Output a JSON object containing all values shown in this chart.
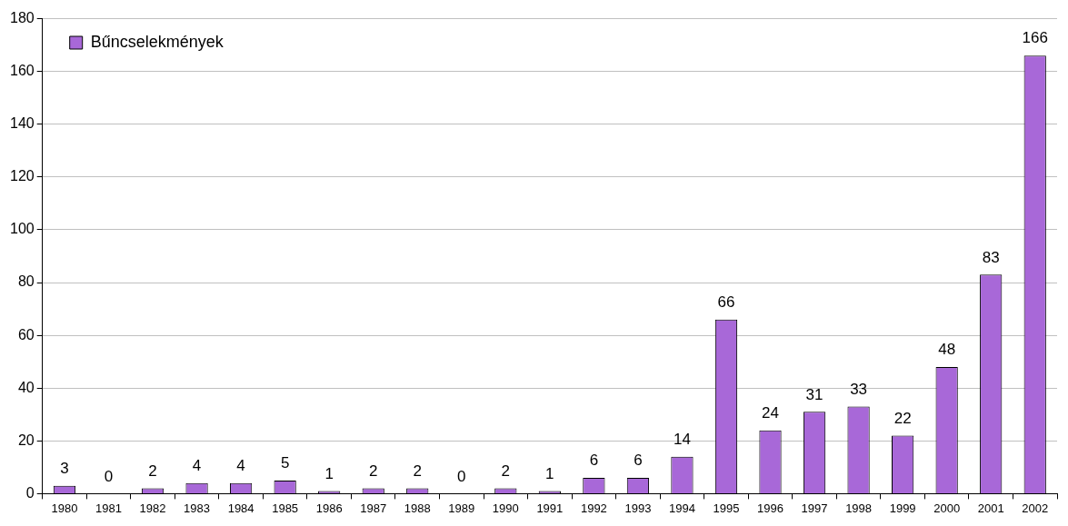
{
  "chart_data": {
    "type": "bar",
    "categories": [
      "1980",
      "1981",
      "1982",
      "1983",
      "1984",
      "1985",
      "1986",
      "1987",
      "1988",
      "1989",
      "1990",
      "1991",
      "1992",
      "1993",
      "1994",
      "1995",
      "1996",
      "1997",
      "1998",
      "1999",
      "2000",
      "2001",
      "2002"
    ],
    "series": [
      {
        "name": "Bűncselekmények",
        "color": "#a868d8",
        "values": [
          3,
          0,
          2,
          4,
          4,
          5,
          1,
          2,
          2,
          0,
          2,
          1,
          6,
          6,
          14,
          66,
          24,
          31,
          33,
          22,
          48,
          83,
          166
        ]
      }
    ],
    "ylim": [
      0,
      180
    ],
    "yticks": [
      0,
      20,
      40,
      60,
      80,
      100,
      120,
      140,
      160,
      180
    ],
    "grid": "y",
    "legend": "top left",
    "data_labels": true
  }
}
